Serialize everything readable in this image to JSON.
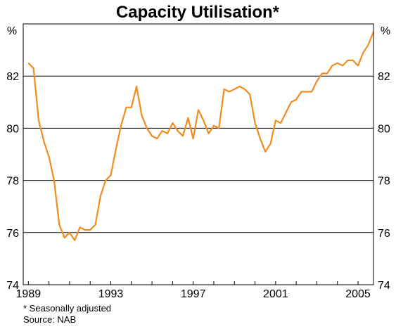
{
  "chart_data": {
    "type": "line",
    "title": "Capacity Utilisation*",
    "y_unit_left": "%",
    "y_unit_right": "%",
    "ylim": [
      74,
      84
    ],
    "yticks": [
      74,
      76,
      78,
      80,
      82
    ],
    "xlim": [
      1988.75,
      2005.75
    ],
    "xticks": [
      1989,
      1993,
      1997,
      2001,
      2005
    ],
    "grid": "horizontal",
    "line_color": "#F28C1E",
    "series": [
      {
        "x": [
          1989.0,
          1989.25,
          1989.5,
          1989.75,
          1990.0,
          1990.25,
          1990.5,
          1990.75,
          1991.0,
          1991.25,
          1991.5,
          1991.75,
          1992.0,
          1992.25,
          1992.5,
          1992.75,
          1993.0,
          1993.25,
          1993.5,
          1993.75,
          1994.0,
          1994.25,
          1994.5,
          1994.75,
          1995.0,
          1995.25,
          1995.5,
          1995.75,
          1996.0,
          1996.25,
          1996.5,
          1996.75,
          1997.0,
          1997.25,
          1997.5,
          1997.75,
          1998.0,
          1998.25,
          1998.5,
          1998.75,
          1999.0,
          1999.25,
          1999.5,
          1999.75,
          2000.0,
          2000.25,
          2000.5,
          2000.75,
          2001.0,
          2001.25,
          2001.5,
          2001.75,
          2002.0,
          2002.25,
          2002.5,
          2002.75,
          2003.0,
          2003.25,
          2003.5,
          2003.75,
          2004.0,
          2004.25,
          2004.5,
          2004.75,
          2005.0,
          2005.25,
          2005.5,
          2005.75
        ],
        "values": [
          82.5,
          82.3,
          80.3,
          79.5,
          78.9,
          78.0,
          76.3,
          75.8,
          76.0,
          75.7,
          76.2,
          76.1,
          76.1,
          76.3,
          77.4,
          78.0,
          78.2,
          79.2,
          80.1,
          80.8,
          80.8,
          81.6,
          80.5,
          80.0,
          79.7,
          79.6,
          79.9,
          79.8,
          80.2,
          79.9,
          79.7,
          80.4,
          79.6,
          80.7,
          80.3,
          79.8,
          80.1,
          80.0,
          81.5,
          81.4,
          81.5,
          81.6,
          81.5,
          81.3,
          80.2,
          79.6,
          79.1,
          79.4,
          80.3,
          80.2,
          80.6,
          81.0,
          81.1,
          81.4,
          81.4,
          81.4,
          81.8,
          82.1,
          82.1,
          82.4,
          82.5,
          82.4,
          82.6,
          82.6,
          82.4,
          82.9,
          83.2,
          83.7
        ]
      }
    ]
  },
  "notes": {
    "footnote": "*   Seasonally adjusted",
    "source": "Source: NAB"
  }
}
